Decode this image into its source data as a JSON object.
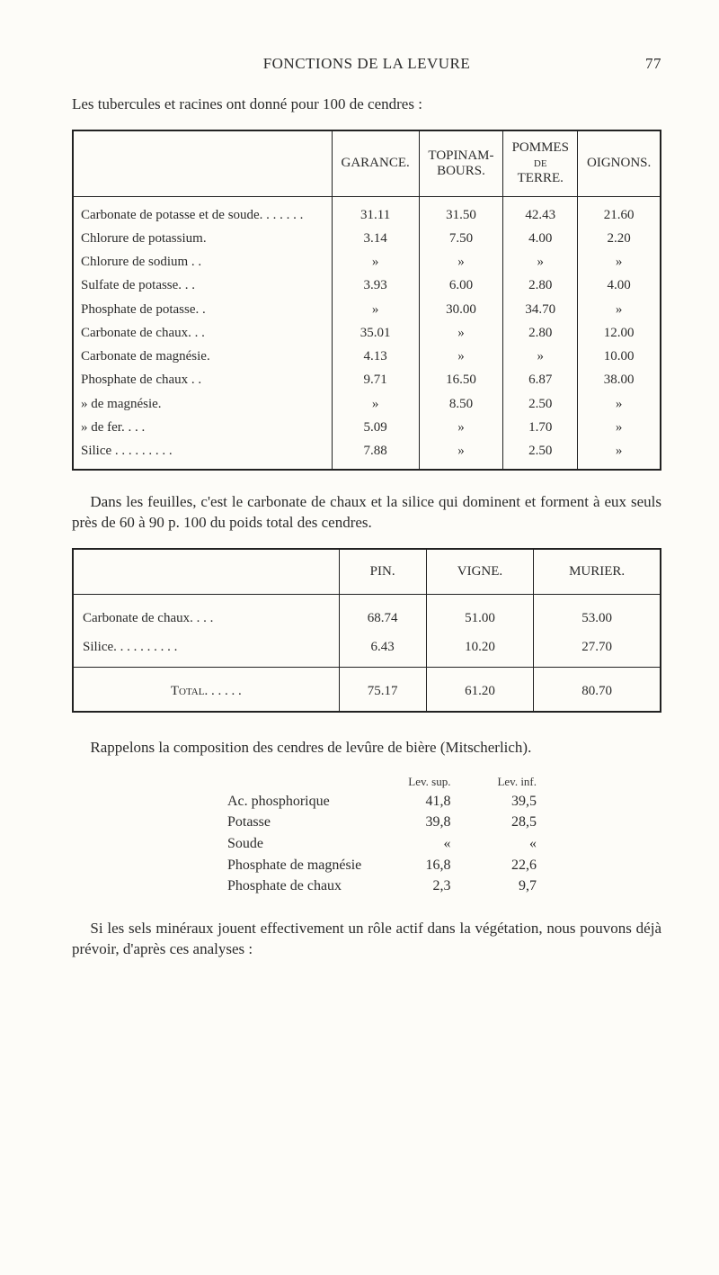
{
  "page": {
    "running_title": "FONCTIONS DE LA LEVURE",
    "page_number": "77",
    "intro": "Les tubercules et racines ont donné pour 100 de cendres :",
    "mid_para": "Dans les feuilles, c'est le carbonate de chaux et la silice qui dominent et forment à eux seuls près de 60 à 90 p. 100 du poids total des cendres.",
    "after_small_para": "Rappelons la composition des cendres de levûre de bière (Mitscherlich).",
    "closing": "Si les sels minéraux jouent effectivement un rôle actif dans la végétation, nous pouvons déjà prévoir, d'après ces analyses :"
  },
  "big_table": {
    "type": "table",
    "text_color": "#2b2b2b",
    "border_color": "#222222",
    "font_size_pt": 11,
    "columns": [
      "",
      "GARANCE.",
      "TOPINAM-\nBOURS.",
      "POMMES\nde\nTERRE.",
      "OIGNONS."
    ],
    "rows": [
      {
        "label": "Carbonate de potasse et de soude. . . . . . .",
        "vals": [
          "31.11",
          "31.50",
          "42.43",
          "21.60"
        ]
      },
      {
        "label": "Chlorure de potassium.",
        "vals": [
          "3.14",
          "7.50",
          "4.00",
          "2.20"
        ]
      },
      {
        "label": "Chlorure de sodium . .",
        "vals": [
          "»",
          "»",
          "»",
          "»"
        ]
      },
      {
        "label": "Sulfate de potasse. . .",
        "vals": [
          "3.93",
          "6.00",
          "2.80",
          "4.00"
        ]
      },
      {
        "label": "Phosphate de potasse. .",
        "vals": [
          "»",
          "30.00",
          "34.70",
          "»"
        ]
      },
      {
        "label": "Carbonate de chaux. . .",
        "vals": [
          "35.01",
          "»",
          "2.80",
          "12.00"
        ]
      },
      {
        "label": "Carbonate de magnésie.",
        "vals": [
          "4.13",
          "»",
          "»",
          "10.00"
        ]
      },
      {
        "label": "Phosphate de chaux . .",
        "vals": [
          "9.71",
          "16.50",
          "6.87",
          "38.00"
        ]
      },
      {
        "label": "      »      de magnésie.",
        "vals": [
          "»",
          "8.50",
          "2.50",
          "»"
        ]
      },
      {
        "label": "      »      de fer. . . .",
        "vals": [
          "5.09",
          "»",
          "1.70",
          "»"
        ]
      },
      {
        "label": "Silice . . . . . . . . .",
        "vals": [
          "7.88",
          "»",
          "2.50",
          "»"
        ]
      }
    ]
  },
  "small_table": {
    "type": "table",
    "border_color": "#222222",
    "font_size_pt": 11,
    "columns": [
      "",
      "PIN.",
      "VIGNE.",
      "MURIER."
    ],
    "rows": [
      {
        "label": "Carbonate de chaux. . . .",
        "vals": [
          "68.74",
          "51.00",
          "53.00"
        ]
      },
      {
        "label": "Silice. . . . . . . . . .",
        "vals": [
          "6.43",
          "10.20",
          "27.70"
        ]
      }
    ],
    "total": {
      "label": "Total. . . . . .",
      "vals": [
        "75.17",
        "61.20",
        "80.70"
      ]
    }
  },
  "mini_list": {
    "type": "table",
    "header": {
      "c1": "Lev. sup.",
      "c2": "Lev. inf."
    },
    "rows": [
      {
        "label": "Ac. phosphorique",
        "v1": "41,8",
        "v2": "39,5"
      },
      {
        "label": "Potasse",
        "v1": "39,8",
        "v2": "28,5"
      },
      {
        "label": "Soude",
        "v1": "«",
        "v2": "«"
      },
      {
        "label": "Phosphate de magnésie",
        "v1": "16,8",
        "v2": "22,6"
      },
      {
        "label": "Phosphate de chaux",
        "v1": "2,3",
        "v2": "9,7"
      }
    ]
  }
}
